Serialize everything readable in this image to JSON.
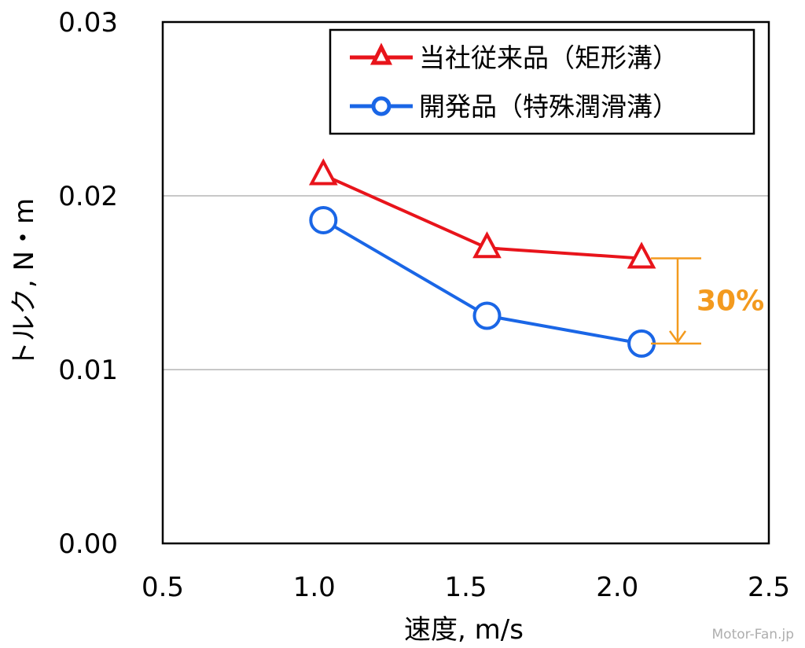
{
  "chart_data": {
    "type": "line",
    "title": "",
    "xlabel": "速度, m/s",
    "ylabel": "トルク, N・m",
    "xlim": [
      0.5,
      2.5
    ],
    "ylim": [
      0.0,
      0.03
    ],
    "xticks": [
      "0.5",
      "1.0",
      "1.5",
      "2.0",
      "2.5"
    ],
    "xtick_values": [
      0.5,
      1.0,
      1.5,
      2.0,
      2.5
    ],
    "yticks": [
      "0.00",
      "0.01",
      "0.02",
      "0.03"
    ],
    "ytick_values": [
      0.0,
      0.01,
      0.02,
      0.03
    ],
    "grid": "horizontal",
    "legend_position": "top-right",
    "series": [
      {
        "name": "当社従来品（矩形溝）",
        "marker": "triangle",
        "color": "#E8141B",
        "x": [
          1.03,
          1.57,
          2.08
        ],
        "y": [
          0.0212,
          0.017,
          0.0164
        ]
      },
      {
        "name": "開発品（特殊潤滑溝）",
        "marker": "circle",
        "color": "#1A66E6",
        "x": [
          1.03,
          1.57,
          2.08
        ],
        "y": [
          0.0186,
          0.0131,
          0.0115
        ]
      }
    ],
    "annotation": {
      "text": "30%",
      "color": "#F39A1E",
      "from_y": 0.0164,
      "to_y": 0.0115
    }
  },
  "watermark": "Motor-Fan.jp"
}
